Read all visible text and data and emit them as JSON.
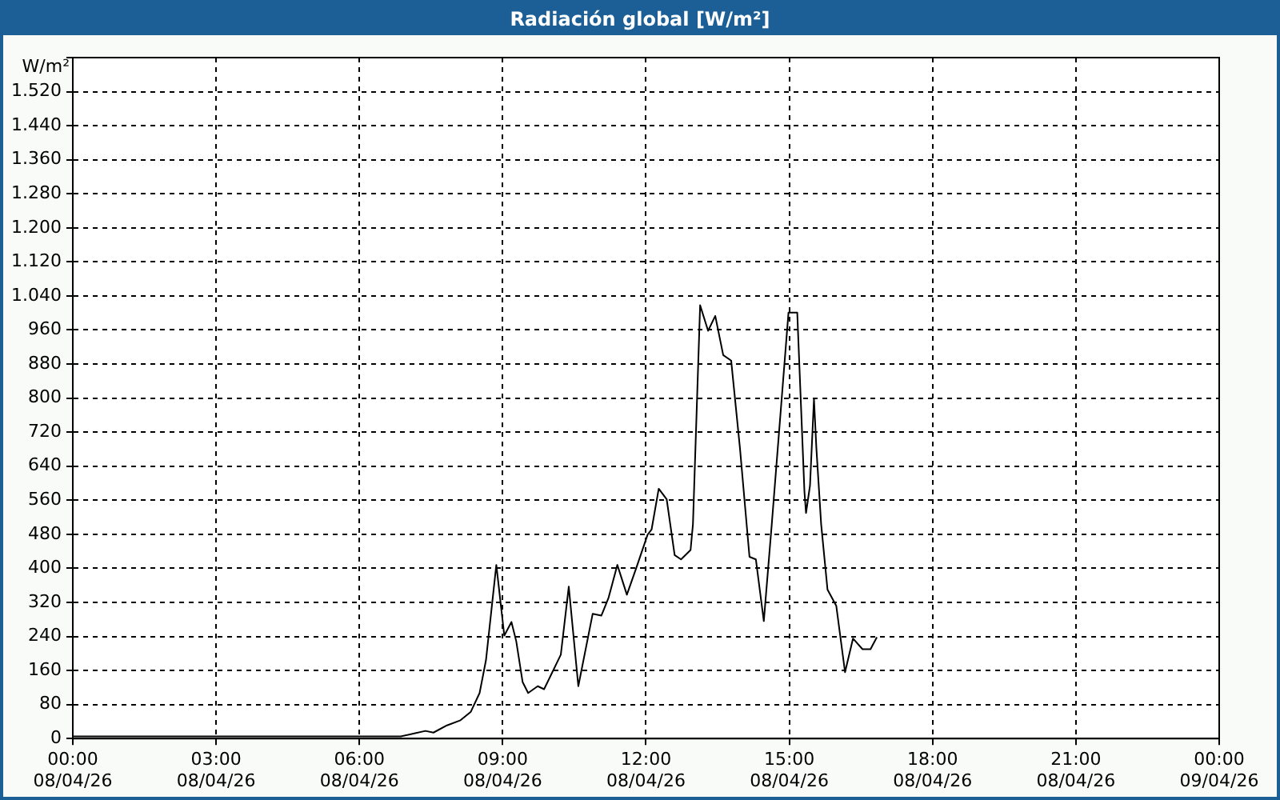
{
  "chart_data": {
    "type": "line",
    "title": "Radiación global [W/m²]",
    "ylabel": "W/m²",
    "series": [
      {
        "color": "#000000",
        "x": [
          "--04-08T00:00",
          "--04-08T06:08",
          "--04-08T06:52",
          "--04-08T07:09",
          "--04-08T07:23",
          "--04-08T07:33",
          "--04-08T07:50",
          "--04-08T08:07",
          "--04-08T08:20",
          "--04-08T08:31",
          "--04-08T08:39",
          "--04-08T08:52",
          "--04-08T09:02",
          "--04-08T09:11",
          "--04-08T09:17",
          "--04-08T09:25",
          "--04-08T09:32",
          "--04-08T09:44",
          "--04-08T09:52",
          "--04-08T10:13",
          "--04-08T10:23",
          "--04-08T10:35",
          "--04-08T10:53",
          "--04-08T11:04",
          "--04-08T11:13",
          "--04-08T11:24",
          "--04-08T11:36",
          "--04-08T11:48",
          "--04-08T12:02",
          "--04-08T12:07",
          "--04-08T12:16",
          "--04-08T12:26",
          "--04-08T12:36",
          "--04-08T12:44",
          "--04-08T12:56",
          "--04-08T12:59",
          "--04-08T13:08",
          "--04-08T13:18",
          "--04-08T13:27",
          "--04-08T13:37",
          "--04-08T13:47",
          "--04-08T13:58",
          "--04-08T14:10",
          "--04-08T14:18",
          "--04-08T14:28",
          "--04-08T14:38",
          "--04-08T14:59",
          "--04-08T15:10",
          "--04-08T15:19",
          "--04-08T15:21",
          "--04-08T15:26",
          "--04-08T15:31",
          "--04-08T15:34",
          "--04-08T15:40",
          "--04-08T15:48",
          "--04-08T15:59",
          "--04-08T16:10",
          "--04-08T16:20",
          "--04-08T16:32",
          "--04-08T16:42",
          "--04-08T16:50"
        ],
        "values": [
          5,
          5,
          5,
          12,
          18,
          14,
          31,
          43,
          63,
          107,
          184,
          408,
          242,
          274,
          229,
          133,
          107,
          123,
          116,
          197,
          357,
          123,
          293,
          289,
          331,
          408,
          338,
          402,
          479,
          491,
          587,
          562,
          431,
          421,
          443,
          504,
          1018,
          958,
          993,
          901,
          888,
          683,
          427,
          421,
          276,
          504,
          1001,
          1001,
          581,
          530,
          594,
          798,
          683,
          504,
          350,
          312,
          156,
          235,
          210,
          210,
          238
        ]
      }
    ],
    "xlim": [
      "--04-08T00:00",
      "--04-09T00:00"
    ],
    "xticks": [
      {
        "value": "--04-08T00:00",
        "label": "00:00\n08/04/26"
      },
      {
        "value": "--04-08T03:00",
        "label": "03:00\n08/04/26"
      },
      {
        "value": "--04-08T06:00",
        "label": "06:00\n08/04/26"
      },
      {
        "value": "--04-08T09:00",
        "label": "09:00\n08/04/26"
      },
      {
        "value": "--04-08T12:00",
        "label": "12:00\n08/04/26"
      },
      {
        "value": "--04-08T15:00",
        "label": "15:00\n08/04/26"
      },
      {
        "value": "--04-08T18:00",
        "label": "18:00\n08/04/26"
      },
      {
        "value": "--04-08T21:00",
        "label": "21:00\n08/04/26"
      },
      {
        "value": "--04-09T00:00",
        "label": "00:00\n09/04/26"
      }
    ],
    "ylim": [
      0,
      1600
    ],
    "yticks": [
      {
        "value": 0,
        "label": "0"
      },
      {
        "value": 80,
        "label": "80"
      },
      {
        "value": 160,
        "label": "160"
      },
      {
        "value": 240,
        "label": "240"
      },
      {
        "value": 320,
        "label": "320"
      },
      {
        "value": 400,
        "label": "400"
      },
      {
        "value": 480,
        "label": "480"
      },
      {
        "value": 560,
        "label": "560"
      },
      {
        "value": 640,
        "label": "640"
      },
      {
        "value": 720,
        "label": "720"
      },
      {
        "value": 800,
        "label": "800"
      },
      {
        "value": 880,
        "label": "880"
      },
      {
        "value": 960,
        "label": "960"
      },
      {
        "value": 1040,
        "label": "1.040"
      },
      {
        "value": 1120,
        "label": "1.120"
      },
      {
        "value": 1200,
        "label": "1.200"
      },
      {
        "value": 1280,
        "label": "1.280"
      },
      {
        "value": 1360,
        "label": "1.360"
      },
      {
        "value": 1440,
        "label": "1.440"
      },
      {
        "value": 1520,
        "label": "1.520"
      },
      {
        "value": 1600,
        "label": null
      }
    ],
    "grid": true,
    "legend": false,
    "marker": "none",
    "line_style": "solid"
  }
}
